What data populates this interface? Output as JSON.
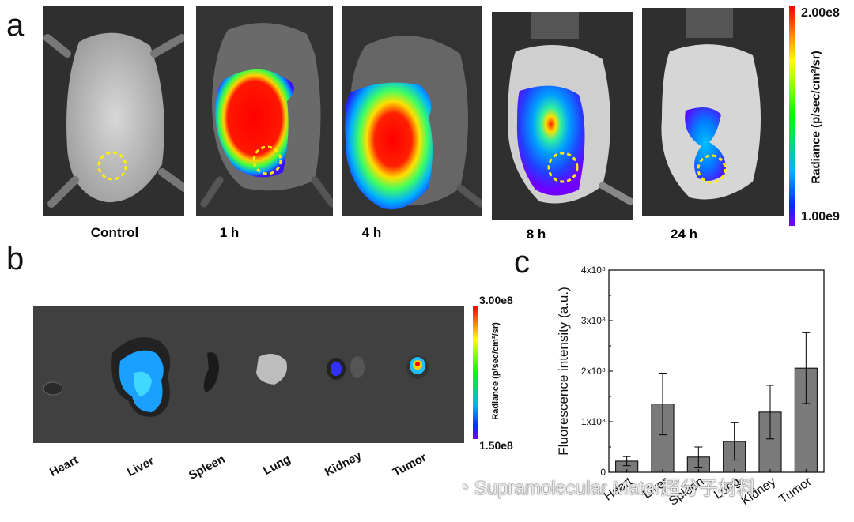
{
  "panels": {
    "a": {
      "letter": "a",
      "timepoints": [
        "Control",
        "1 h",
        "4 h",
        "8 h",
        "24 h"
      ]
    },
    "b": {
      "letter": "b",
      "organs": [
        "Heart",
        "Liver",
        "Spleen",
        "Lung",
        "Kidney",
        "Tumor"
      ]
    },
    "c": {
      "letter": "c"
    }
  },
  "colorbar_a": {
    "max": "2.00e8",
    "min": "1.00e9",
    "title": "Radiance (p/sec/cm²/sr)"
  },
  "colorbar_b": {
    "max": "3.00e8",
    "min": "1.50e8",
    "title": "Radiance (p/sec/cm²/sr)"
  },
  "chart_data": {
    "type": "bar",
    "categories": [
      "Heart",
      "Liver",
      "Spleen",
      "Lung",
      "Kidney",
      "Tumor"
    ],
    "values": [
      22000000.0,
      135000000.0,
      30000000.0,
      61000000.0,
      119000000.0,
      206000000.0
    ],
    "errors": [
      9000000.0,
      61000000.0,
      20000000.0,
      37000000.0,
      53000000.0,
      70000000.0
    ],
    "ylabel": "Fluorescence intensity (a.u.)",
    "ylim": [
      0,
      400000000.0
    ],
    "yticks": [
      "0",
      "1x10⁸",
      "2x10⁸",
      "3x10⁸",
      "4x10⁸"
    ],
    "bar_color": "#7a7a7a",
    "grid": false
  },
  "watermark": "Supramolecular Mater超分子材料",
  "colors": {
    "heat_red": "#ff0000",
    "heat_yellow": "#ffff00",
    "heat_green": "#00ff00",
    "heat_blue": "#0050ff",
    "heat_violet": "#6a00ff",
    "roi_circle": "#ffee00"
  }
}
